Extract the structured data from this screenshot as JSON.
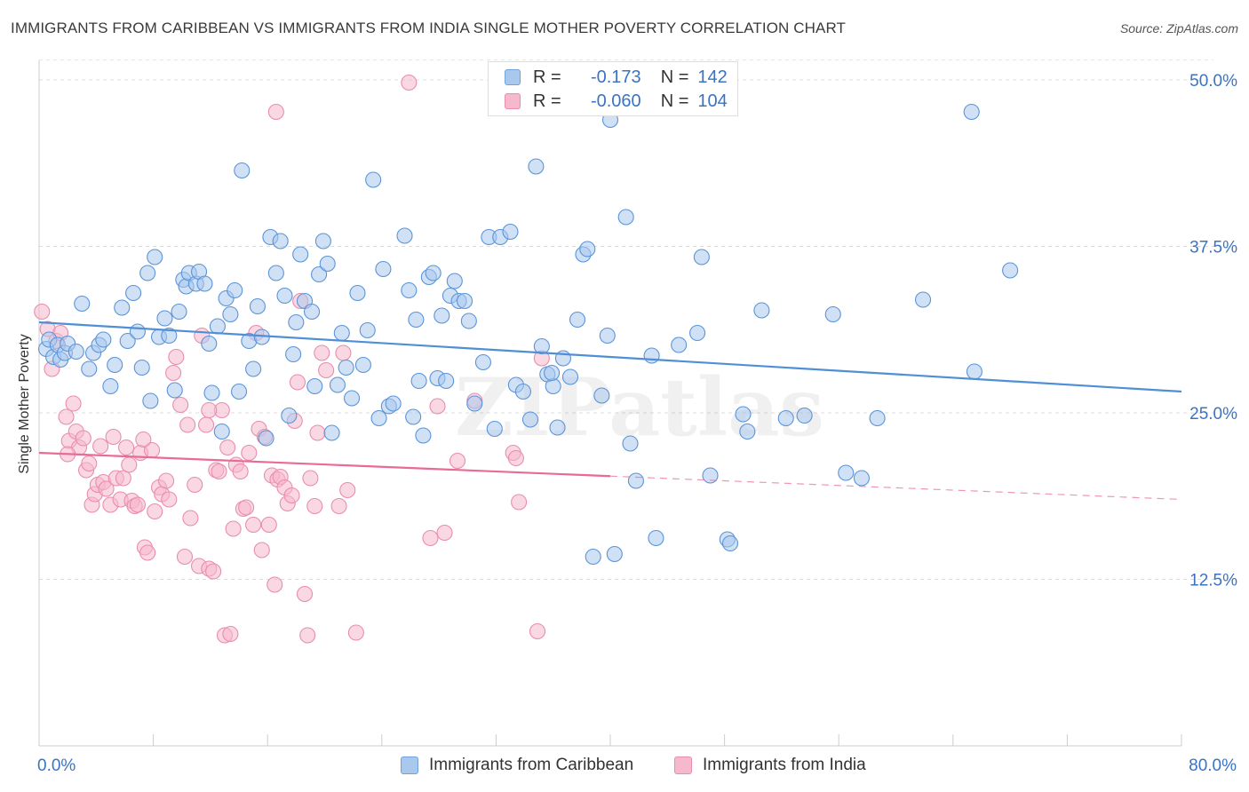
{
  "title": "IMMIGRANTS FROM CARIBBEAN VS IMMIGRANTS FROM INDIA SINGLE MOTHER POVERTY CORRELATION CHART",
  "source": "Source: ZipAtlas.com",
  "watermark": "ZIPatlas",
  "legend_top": {
    "rows": [
      {
        "r_label": "R =",
        "r_value": "-0.173",
        "n_label": "N =",
        "n_value": "142",
        "color": "#a9c8ee"
      },
      {
        "r_label": "R =",
        "r_value": "-0.060",
        "n_label": "N =",
        "n_value": "104",
        "color": "#f5b8cc"
      }
    ]
  },
  "legend_bottom": [
    {
      "label": "Immigrants from Caribbean",
      "color": "#a9c8ee"
    },
    {
      "label": "Immigrants from India",
      "color": "#f5b8cc"
    }
  ],
  "colors": {
    "blue": "#4f8fd6",
    "blue_fill": "#a9c8ee",
    "pink": "#e86a97",
    "pink_fill": "#f5b8cc",
    "tick_text": "#3a73c4"
  },
  "chart_data": {
    "type": "scatter",
    "title": "IMMIGRANTS FROM CARIBBEAN VS IMMIGRANTS FROM INDIA SINGLE MOTHER POVERTY CORRELATION CHART",
    "xlabel": "",
    "ylabel": "Single Mother Poverty",
    "xlim": [
      0,
      80
    ],
    "ylim": [
      0,
      52
    ],
    "x_tick_labels": [
      "0.0%",
      "80.0%"
    ],
    "y_ticks": [
      12.5,
      25.0,
      37.5,
      50.0
    ],
    "y_tick_labels": [
      "12.5%",
      "25.0%",
      "37.5%",
      "50.0%"
    ],
    "grid": true,
    "legend_placement": "bottom",
    "series": [
      {
        "name": "Immigrants from Caribbean",
        "color": "#4f8fd6",
        "trend": {
          "x": [
            0,
            80
          ],
          "y": [
            31.8,
            26.6
          ],
          "dashed_from": null
        },
        "points": [
          [
            0.5,
            29.8
          ],
          [
            0.7,
            30.5
          ],
          [
            1.0,
            29.2
          ],
          [
            1.3,
            30.1
          ],
          [
            1.5,
            29.0
          ],
          [
            1.8,
            29.5
          ],
          [
            2.0,
            30.2
          ],
          [
            2.6,
            29.6
          ],
          [
            3.0,
            33.2
          ],
          [
            3.5,
            28.3
          ],
          [
            3.8,
            29.5
          ],
          [
            4.2,
            30.1
          ],
          [
            4.5,
            30.5
          ],
          [
            5.0,
            27.0
          ],
          [
            5.3,
            28.6
          ],
          [
            5.8,
            32.9
          ],
          [
            6.2,
            30.4
          ],
          [
            6.6,
            34.0
          ],
          [
            6.9,
            31.1
          ],
          [
            7.2,
            28.4
          ],
          [
            7.6,
            35.5
          ],
          [
            7.8,
            25.9
          ],
          [
            8.1,
            36.7
          ],
          [
            8.4,
            30.7
          ],
          [
            8.8,
            32.1
          ],
          [
            9.1,
            30.8
          ],
          [
            9.5,
            26.7
          ],
          [
            9.8,
            32.6
          ],
          [
            10.1,
            35.0
          ],
          [
            10.3,
            34.5
          ],
          [
            10.5,
            35.5
          ],
          [
            11.0,
            34.7
          ],
          [
            11.2,
            35.6
          ],
          [
            11.6,
            34.7
          ],
          [
            11.9,
            30.2
          ],
          [
            12.1,
            26.5
          ],
          [
            12.5,
            31.5
          ],
          [
            12.8,
            23.6
          ],
          [
            13.1,
            33.6
          ],
          [
            13.4,
            32.4
          ],
          [
            13.7,
            34.2
          ],
          [
            14.0,
            26.6
          ],
          [
            14.2,
            43.2
          ],
          [
            14.7,
            30.4
          ],
          [
            15.0,
            28.3
          ],
          [
            15.3,
            33.0
          ],
          [
            15.6,
            30.7
          ],
          [
            15.9,
            23.1
          ],
          [
            16.2,
            38.2
          ],
          [
            16.6,
            35.5
          ],
          [
            16.9,
            37.9
          ],
          [
            17.2,
            33.8
          ],
          [
            17.5,
            24.8
          ],
          [
            17.8,
            29.4
          ],
          [
            18.0,
            31.8
          ],
          [
            18.3,
            36.9
          ],
          [
            18.6,
            33.4
          ],
          [
            19.1,
            32.6
          ],
          [
            19.3,
            27.0
          ],
          [
            19.6,
            35.4
          ],
          [
            19.9,
            37.9
          ],
          [
            20.2,
            36.2
          ],
          [
            20.5,
            23.5
          ],
          [
            20.9,
            27.1
          ],
          [
            21.2,
            31.0
          ],
          [
            21.5,
            28.4
          ],
          [
            21.9,
            26.1
          ],
          [
            22.3,
            34.0
          ],
          [
            22.7,
            28.6
          ],
          [
            23.0,
            31.2
          ],
          [
            23.4,
            42.5
          ],
          [
            23.8,
            24.6
          ],
          [
            24.1,
            35.8
          ],
          [
            24.5,
            25.5
          ],
          [
            24.8,
            25.7
          ],
          [
            25.6,
            38.3
          ],
          [
            25.9,
            34.2
          ],
          [
            26.2,
            24.7
          ],
          [
            26.6,
            27.4
          ],
          [
            26.9,
            23.3
          ],
          [
            27.3,
            35.2
          ],
          [
            27.6,
            35.5
          ],
          [
            27.9,
            27.6
          ],
          [
            28.2,
            32.3
          ],
          [
            28.5,
            27.4
          ],
          [
            28.8,
            33.8
          ],
          [
            29.1,
            34.9
          ],
          [
            29.4,
            33.4
          ],
          [
            29.8,
            33.4
          ],
          [
            30.1,
            31.9
          ],
          [
            30.5,
            25.7
          ],
          [
            31.1,
            28.8
          ],
          [
            31.5,
            38.2
          ],
          [
            31.9,
            23.8
          ],
          [
            32.3,
            38.2
          ],
          [
            33.0,
            38.6
          ],
          [
            33.4,
            27.1
          ],
          [
            33.9,
            26.6
          ],
          [
            34.4,
            24.5
          ],
          [
            34.8,
            43.5
          ],
          [
            35.2,
            30.0
          ],
          [
            35.6,
            27.9
          ],
          [
            36.0,
            27.0
          ],
          [
            36.3,
            23.9
          ],
          [
            36.7,
            29.1
          ],
          [
            37.2,
            27.7
          ],
          [
            37.7,
            32.0
          ],
          [
            38.1,
            36.9
          ],
          [
            38.4,
            37.3
          ],
          [
            38.8,
            14.2
          ],
          [
            39.4,
            26.3
          ],
          [
            39.8,
            30.8
          ],
          [
            40.0,
            47.0
          ],
          [
            40.3,
            14.4
          ],
          [
            41.1,
            39.7
          ],
          [
            41.4,
            22.7
          ],
          [
            41.8,
            19.9
          ],
          [
            42.9,
            29.3
          ],
          [
            43.2,
            15.6
          ],
          [
            44.8,
            30.1
          ],
          [
            46.1,
            31.0
          ],
          [
            46.4,
            36.7
          ],
          [
            47.0,
            20.3
          ],
          [
            48.2,
            15.5
          ],
          [
            48.4,
            15.2
          ],
          [
            49.3,
            24.9
          ],
          [
            49.6,
            23.6
          ],
          [
            50.6,
            32.7
          ],
          [
            52.3,
            24.6
          ],
          [
            53.6,
            24.8
          ],
          [
            55.6,
            32.4
          ],
          [
            56.5,
            20.5
          ],
          [
            57.6,
            20.1
          ],
          [
            58.7,
            24.6
          ],
          [
            61.9,
            33.5
          ],
          [
            65.3,
            47.6
          ],
          [
            65.5,
            28.1
          ],
          [
            68.0,
            35.7
          ],
          [
            26.4,
            32.0
          ],
          [
            35.9,
            28.0
          ]
        ]
      },
      {
        "name": "Immigrants from India",
        "color": "#e86a97",
        "trend": {
          "x": [
            0,
            80
          ],
          "y": [
            22.0,
            18.5
          ],
          "dashed_from": 40
        },
        "points": [
          [
            0.2,
            32.6
          ],
          [
            0.6,
            31.3
          ],
          [
            0.9,
            28.3
          ],
          [
            1.2,
            30.4
          ],
          [
            1.5,
            31.0
          ],
          [
            1.9,
            24.7
          ],
          [
            2.1,
            22.9
          ],
          [
            2.4,
            25.7
          ],
          [
            2.6,
            23.6
          ],
          [
            2.8,
            22.4
          ],
          [
            3.1,
            23.1
          ],
          [
            3.3,
            20.7
          ],
          [
            3.5,
            21.2
          ],
          [
            3.7,
            18.1
          ],
          [
            3.9,
            18.9
          ],
          [
            4.1,
            19.6
          ],
          [
            4.3,
            22.5
          ],
          [
            4.5,
            19.8
          ],
          [
            4.7,
            19.3
          ],
          [
            5.0,
            18.1
          ],
          [
            5.2,
            23.2
          ],
          [
            5.4,
            20.1
          ],
          [
            5.7,
            18.5
          ],
          [
            5.9,
            20.1
          ],
          [
            6.1,
            22.4
          ],
          [
            6.3,
            21.1
          ],
          [
            6.5,
            18.4
          ],
          [
            6.7,
            18.0
          ],
          [
            6.9,
            18.1
          ],
          [
            7.1,
            22.0
          ],
          [
            7.4,
            14.9
          ],
          [
            7.6,
            14.5
          ],
          [
            7.9,
            22.2
          ],
          [
            8.1,
            17.6
          ],
          [
            8.4,
            19.4
          ],
          [
            8.6,
            18.9
          ],
          [
            8.9,
            19.9
          ],
          [
            9.1,
            18.5
          ],
          [
            9.4,
            28.0
          ],
          [
            9.6,
            29.2
          ],
          [
            9.9,
            25.6
          ],
          [
            10.2,
            14.2
          ],
          [
            10.4,
            24.1
          ],
          [
            10.6,
            17.1
          ],
          [
            10.9,
            19.6
          ],
          [
            11.2,
            13.5
          ],
          [
            11.4,
            30.8
          ],
          [
            11.7,
            24.1
          ],
          [
            11.9,
            13.3
          ],
          [
            12.2,
            13.1
          ],
          [
            12.4,
            20.7
          ],
          [
            12.6,
            20.6
          ],
          [
            12.8,
            25.2
          ],
          [
            13.0,
            8.3
          ],
          [
            13.2,
            22.4
          ],
          [
            13.4,
            8.4
          ],
          [
            13.6,
            16.3
          ],
          [
            13.8,
            21.1
          ],
          [
            14.1,
            20.6
          ],
          [
            14.3,
            17.8
          ],
          [
            14.5,
            17.9
          ],
          [
            14.7,
            22.0
          ],
          [
            15.0,
            16.6
          ],
          [
            15.2,
            31.0
          ],
          [
            15.4,
            23.8
          ],
          [
            15.6,
            14.7
          ],
          [
            15.8,
            23.2
          ],
          [
            16.1,
            16.6
          ],
          [
            16.3,
            20.3
          ],
          [
            16.5,
            12.1
          ],
          [
            16.7,
            20.0
          ],
          [
            16.9,
            20.2
          ],
          [
            17.2,
            19.4
          ],
          [
            17.4,
            18.2
          ],
          [
            17.7,
            18.8
          ],
          [
            17.9,
            24.4
          ],
          [
            18.1,
            27.3
          ],
          [
            18.3,
            33.4
          ],
          [
            18.6,
            11.4
          ],
          [
            18.8,
            8.3
          ],
          [
            19.0,
            20.1
          ],
          [
            19.3,
            18.0
          ],
          [
            19.5,
            23.5
          ],
          [
            19.8,
            29.5
          ],
          [
            20.1,
            28.2
          ],
          [
            21.0,
            18.0
          ],
          [
            21.3,
            29.5
          ],
          [
            21.6,
            19.2
          ],
          [
            22.2,
            8.5
          ],
          [
            27.4,
            15.6
          ],
          [
            27.9,
            25.5
          ],
          [
            28.4,
            16.0
          ],
          [
            29.3,
            21.4
          ],
          [
            30.5,
            25.9
          ],
          [
            33.2,
            22.0
          ],
          [
            33.4,
            21.6
          ],
          [
            33.6,
            18.3
          ],
          [
            34.9,
            8.6
          ],
          [
            35.2,
            29.1
          ],
          [
            25.9,
            49.8
          ],
          [
            16.6,
            47.6
          ],
          [
            2.0,
            21.9
          ],
          [
            7.3,
            23.0
          ],
          [
            11.9,
            25.2
          ]
        ]
      }
    ]
  }
}
